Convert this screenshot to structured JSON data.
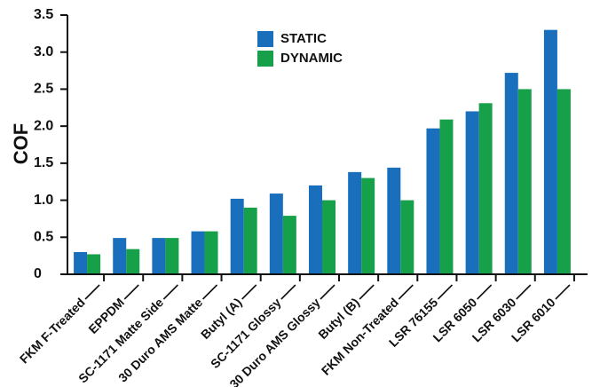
{
  "chart_data": {
    "type": "bar",
    "ylabel": "COF",
    "ylim": [
      0,
      3.5
    ],
    "yticks": [
      "0",
      "0.5",
      "1.0",
      "1.5",
      "2.0",
      "2.5",
      "3.0",
      "3.5"
    ],
    "yticks_values": [
      0,
      0.5,
      1.0,
      1.5,
      2.0,
      2.5,
      3.0,
      3.5
    ],
    "grid": false,
    "legend_position": "top-center",
    "categories": [
      "FKM F-Treated",
      "EPPDM",
      "SC-1171 Matte Side",
      "30 Duro AMS Matte",
      "Butyl (A)",
      "SC-1171 Glossy",
      "30 Duro AMS Glossy",
      "Butyl (B)",
      "FKM Non-Treated",
      "LSR 76155",
      "LSR 6050",
      "LSR 6030",
      "LSR 6010"
    ],
    "series": [
      {
        "name": "STATIC",
        "color": "#1a6fbd",
        "values": [
          0.3,
          0.49,
          0.49,
          0.58,
          1.02,
          1.09,
          1.2,
          1.38,
          1.44,
          1.97,
          2.2,
          2.72,
          3.3
        ]
      },
      {
        "name": "DYNAMIC",
        "color": "#16a04a",
        "values": [
          0.27,
          0.34,
          0.49,
          0.58,
          0.9,
          0.79,
          1.0,
          1.3,
          1.0,
          2.09,
          2.31,
          2.5,
          2.5
        ]
      }
    ]
  }
}
